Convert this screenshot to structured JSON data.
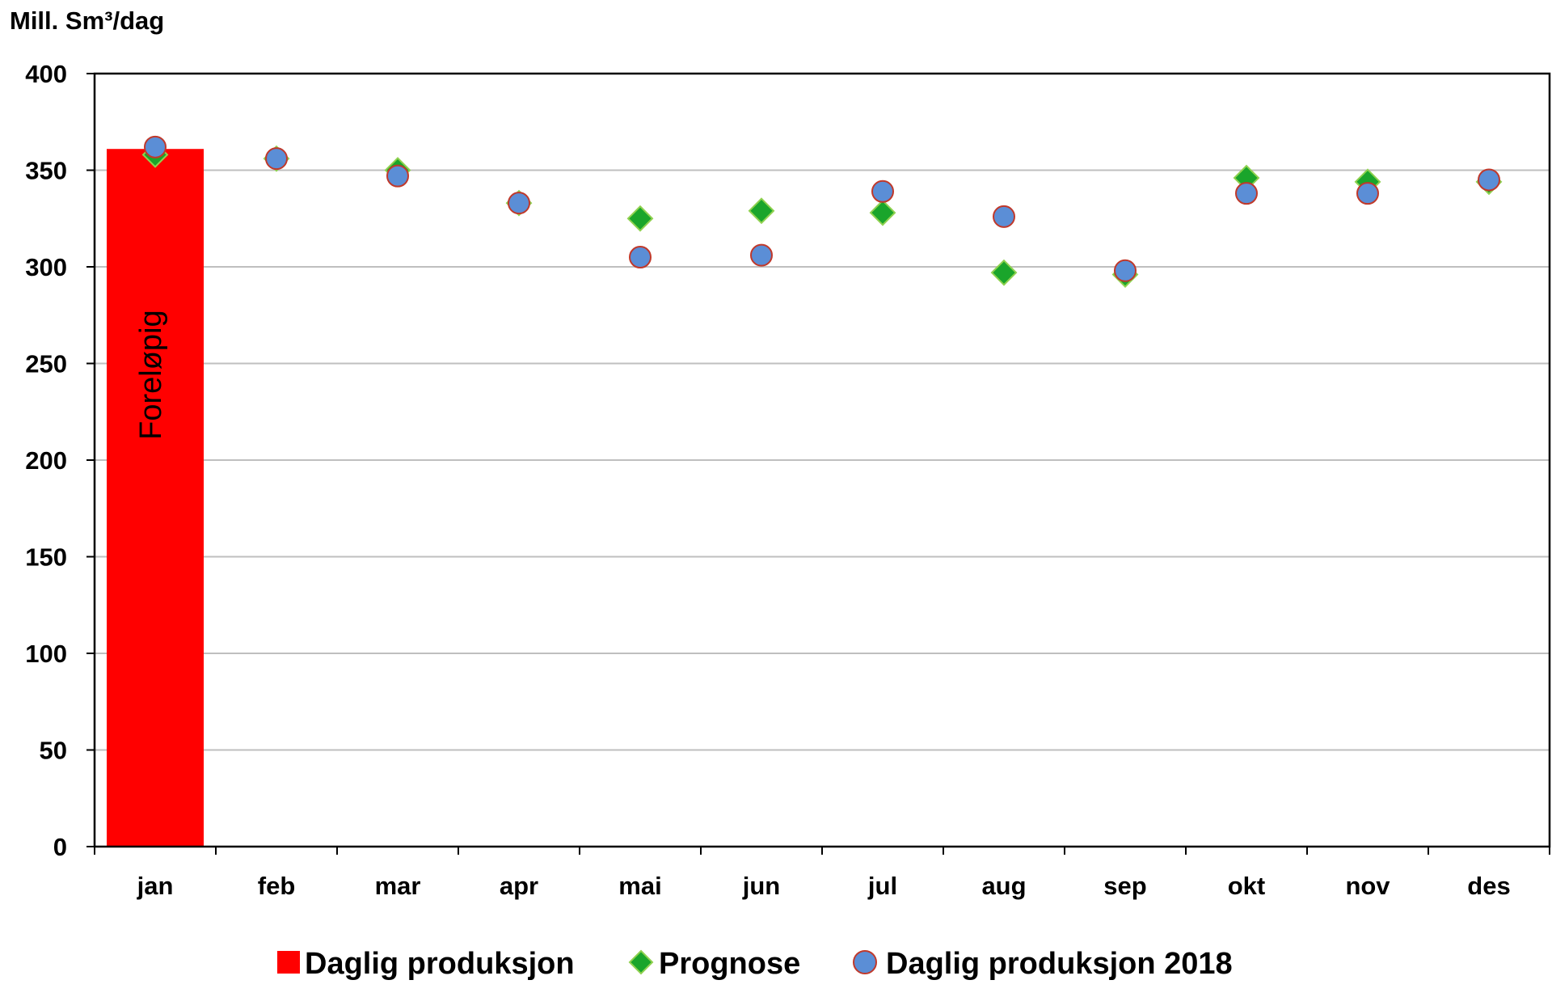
{
  "chart_data": {
    "type": "bar",
    "ylabel": "Mill. Sm³/dag",
    "ylim": [
      0,
      400
    ],
    "yticks": [
      0,
      50,
      100,
      150,
      200,
      250,
      300,
      350,
      400
    ],
    "categories": [
      "jan",
      "feb",
      "mar",
      "apr",
      "mai",
      "jun",
      "jul",
      "aug",
      "sep",
      "okt",
      "nov",
      "des"
    ],
    "grid": true,
    "legend_position": "bottom",
    "series": [
      {
        "name": "Daglig produksjon",
        "kind": "bar",
        "color": "#ff0000",
        "values": [
          361,
          null,
          null,
          null,
          null,
          null,
          null,
          null,
          null,
          null,
          null,
          null
        ],
        "annotation": "Foreløpig"
      },
      {
        "name": "Prognose",
        "kind": "scatter",
        "marker": "diamond",
        "color": "#1aa52b",
        "values": [
          358,
          356,
          350,
          333,
          325,
          329,
          328,
          297,
          296,
          346,
          344,
          344
        ]
      },
      {
        "name": "Daglig produksjon 2018",
        "kind": "scatter",
        "marker": "circle",
        "color": "#5b8ed6",
        "values": [
          362,
          356,
          347,
          333,
          305,
          306,
          339,
          326,
          298,
          338,
          338,
          345
        ]
      }
    ]
  }
}
